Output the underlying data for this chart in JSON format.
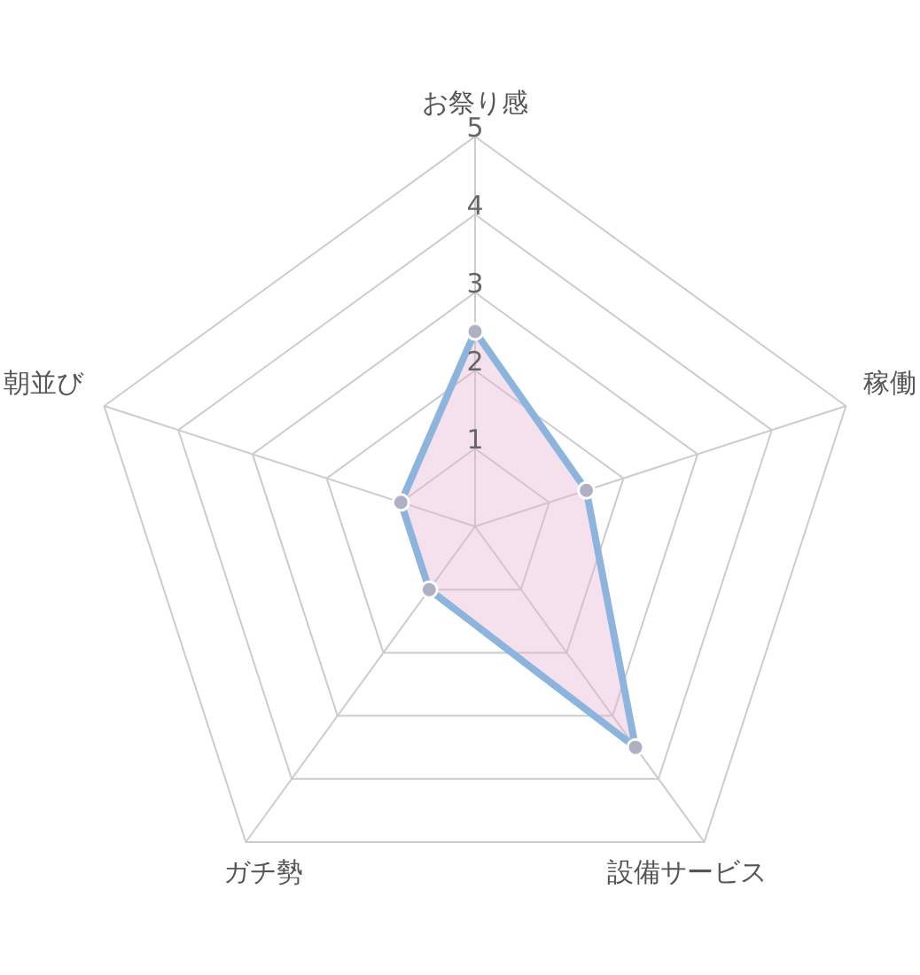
{
  "chart_data": {
    "type": "radar",
    "categories": [
      "お祭り感",
      "稼働",
      "設備サービス",
      "ガチ勢",
      "朝並び"
    ],
    "series": [
      {
        "color": "#8db4dc",
        "values": [
          2.5,
          1.5,
          3.5,
          1,
          1
        ]
      }
    ],
    "ylim": [
      0,
      5
    ],
    "yticks": [
      1,
      2,
      3,
      4,
      5
    ],
    "grid": true,
    "marker": "circle",
    "line_style": "solid"
  }
}
